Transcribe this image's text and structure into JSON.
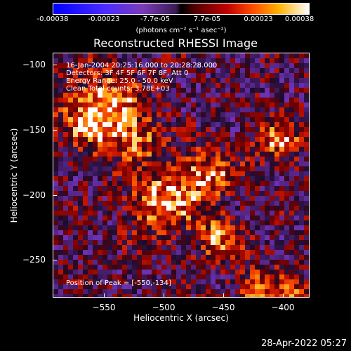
{
  "colorbar": {
    "ticks": [
      "-0.00038",
      "-0.00023",
      "-7.7e-05",
      "7.7e-05",
      "0.00023",
      "0.00038"
    ],
    "units": "(photons cm⁻² s⁻¹ asec⁻²)"
  },
  "title": "Reconstructed RHESSI Image",
  "overlay": [
    "16-Jan-2004 20:25:16.000 to 20:28:28.000",
    "Detectors: 3F 4F 5F 6F 7F 8F, Att 0",
    "Energy Range: 25.0 - 50.0 keV",
    "Clean        Total counts: 3.78E+03"
  ],
  "peak_label": "Position of Peak = [-550,-134]",
  "x_axis": {
    "label": "Heliocentric X (arcsec)",
    "ticks": [
      "−550",
      "−500",
      "−450",
      "−400"
    ]
  },
  "y_axis": {
    "label": "Heliocentric Y (arcsec)",
    "ticks": [
      "−100",
      "−150",
      "−200",
      "−250"
    ]
  },
  "timestamp": "28-Apr-2022 05:27",
  "colors": {
    "background": "#000000",
    "cold_min": "#0000ff",
    "hot_max": "#ffffff",
    "mid_red": "#c00000"
  }
}
